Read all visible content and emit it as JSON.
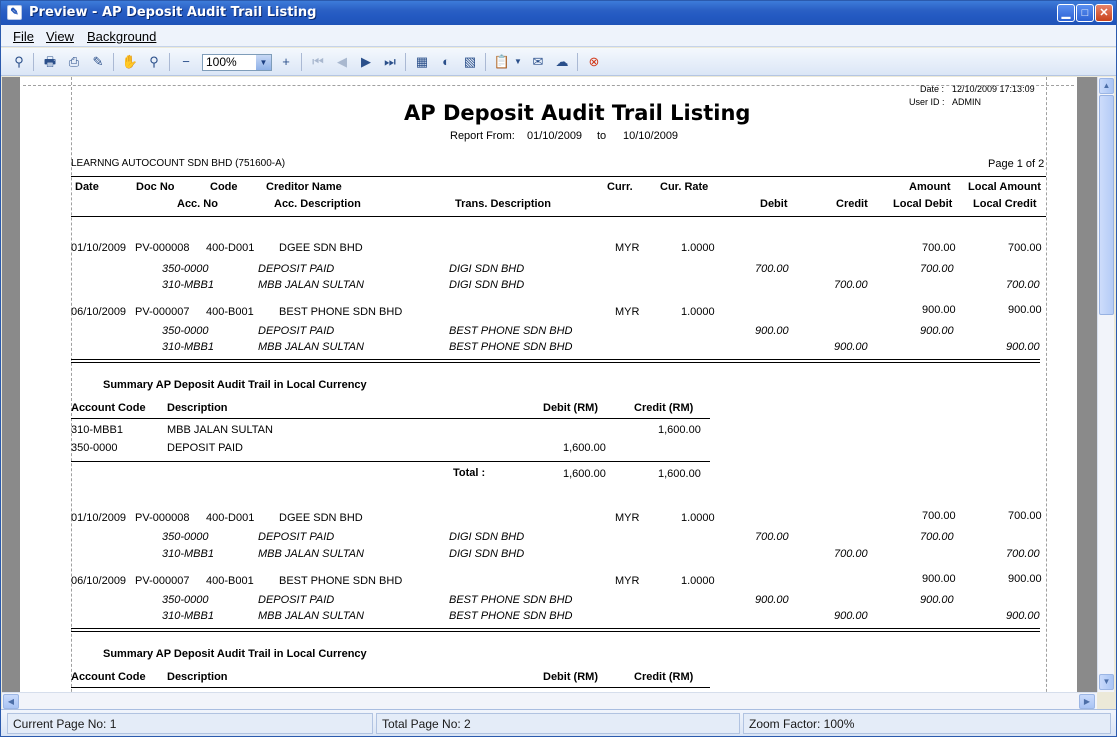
{
  "window": {
    "title": "Preview - AP Deposit Audit Trail Listing"
  },
  "menu": {
    "file": "File",
    "view": "View",
    "background": "Background"
  },
  "toolbar": {
    "zoom": "100%"
  },
  "report": {
    "date_label": "Date :",
    "date_value": "12/10/2009 17:13:09",
    "user_label": "User ID :",
    "user_value": "ADMIN",
    "title": "AP Deposit Audit Trail Listing",
    "range_label": "Report From:",
    "range_from": "01/10/2009",
    "range_to_label": "to",
    "range_to": "10/10/2009",
    "company": "LEARNNG AUTOCOUNT SDN BHD (751600-A)",
    "page_info": "Page 1 of 2",
    "headers": {
      "date": "Date",
      "doc_no": "Doc No",
      "code": "Code",
      "creditor_name": "Creditor Name",
      "curr": "Curr.",
      "cur_rate": "Cur. Rate",
      "amount": "Amount",
      "local_amount": "Local Amount",
      "acc_no": "Acc. No",
      "acc_desc": "Acc. Description",
      "trans_desc": "Trans. Description",
      "debit": "Debit",
      "credit": "Credit",
      "local_debit": "Local Debit",
      "local_credit": "Local Credit"
    },
    "group1": {
      "entries": [
        {
          "date": "01/10/2009",
          "doc": "PV-000008",
          "code": "400-D001",
          "name": "DGEE SDN BHD",
          "curr": "MYR",
          "rate": "1.0000",
          "amount": "700.00",
          "local": "700.00",
          "l1": {
            "acc": "350-0000",
            "desc": "DEPOSIT PAID",
            "trans": "DIGI SDN BHD",
            "debit": "700.00",
            "ldebit": "700.00"
          },
          "l2": {
            "acc": "310-MBB1",
            "desc": "MBB JALAN SULTAN",
            "trans": "DIGI SDN BHD",
            "credit": "700.00",
            "lcredit": "700.00"
          }
        },
        {
          "date": "06/10/2009",
          "doc": "PV-000007",
          "code": "400-B001",
          "name": "BEST PHONE SDN BHD",
          "curr": "MYR",
          "rate": "1.0000",
          "amount": "900.00",
          "local": "900.00",
          "l1": {
            "acc": "350-0000",
            "desc": "DEPOSIT PAID",
            "trans": "BEST PHONE SDN BHD",
            "debit": "900.00",
            "ldebit": "900.00"
          },
          "l2": {
            "acc": "310-MBB1",
            "desc": "MBB JALAN SULTAN",
            "trans": "BEST PHONE SDN BHD",
            "credit": "900.00",
            "lcredit": "900.00"
          }
        }
      ]
    },
    "summary": {
      "title": "Summary AP Deposit Audit Trail in Local Currency",
      "h_code": "Account Code",
      "h_desc": "Description",
      "h_debit": "Debit (RM)",
      "h_credit": "Credit (RM)",
      "rows": [
        {
          "code": "310-MBB1",
          "desc": "MBB JALAN SULTAN",
          "debit": "",
          "credit": "1,600.00"
        },
        {
          "code": "350-0000",
          "desc": "DEPOSIT PAID",
          "debit": "1,600.00",
          "credit": ""
        }
      ],
      "total_label": "Total :",
      "total_debit": "1,600.00",
      "total_credit": "1,600.00"
    }
  },
  "status": {
    "current": "Current Page No: 1",
    "total": "Total Page No: 2",
    "zoom": "Zoom Factor: 100%"
  }
}
